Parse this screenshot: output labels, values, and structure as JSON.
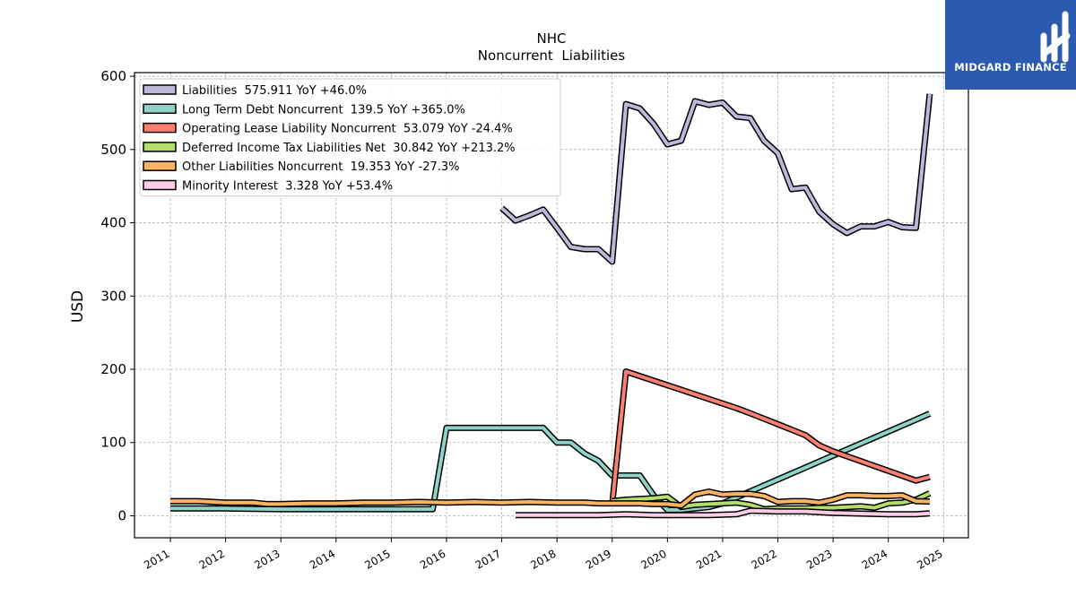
{
  "brand": {
    "name": "MIDGARD FINANCE",
    "logo_color": "#2b5ab0"
  },
  "chart_data": {
    "type": "line",
    "title": "NHC",
    "subtitle": "Noncurrent  Liabilities",
    "xlabel": "",
    "ylabel": "USD",
    "xlim": [
      2010.35,
      2025.45
    ],
    "ylim": [
      -30,
      605
    ],
    "x_ticks": [
      "2011",
      "2012",
      "2013",
      "2014",
      "2015",
      "2016",
      "2017",
      "2018",
      "2019",
      "2020",
      "2021",
      "2022",
      "2023",
      "2024",
      "2025"
    ],
    "y_ticks": [
      0,
      100,
      200,
      300,
      400,
      500,
      600
    ],
    "grid": true,
    "legend_position": "top-left",
    "series": [
      {
        "name": "Liabilities",
        "legend_label": "Liabilities  575.911 YoY +46.0%",
        "color": "#bcb8da",
        "points": [
          [
            2017.0,
            420
          ],
          [
            2017.25,
            403
          ],
          [
            2017.5,
            410
          ],
          [
            2017.75,
            418
          ],
          [
            2018.0,
            393
          ],
          [
            2018.25,
            367
          ],
          [
            2018.5,
            364
          ],
          [
            2018.75,
            364
          ],
          [
            2019.0,
            347
          ],
          [
            2019.25,
            562
          ],
          [
            2019.5,
            556
          ],
          [
            2019.75,
            535
          ],
          [
            2020.0,
            507
          ],
          [
            2020.25,
            512
          ],
          [
            2020.5,
            566
          ],
          [
            2020.75,
            561
          ],
          [
            2021.0,
            564
          ],
          [
            2021.25,
            545
          ],
          [
            2021.5,
            543
          ],
          [
            2021.75,
            512
          ],
          [
            2022.0,
            495
          ],
          [
            2022.25,
            446
          ],
          [
            2022.5,
            448
          ],
          [
            2022.75,
            415
          ],
          [
            2023.0,
            398
          ],
          [
            2023.25,
            386
          ],
          [
            2023.5,
            395
          ],
          [
            2023.75,
            395
          ],
          [
            2024.0,
            401
          ],
          [
            2024.25,
            394
          ],
          [
            2024.5,
            393
          ],
          [
            2024.75,
            576
          ]
        ]
      },
      {
        "name": "Long Term Debt Noncurrent",
        "legend_label": "Long Term Debt Noncurrent  139.5 YoY +365.0%",
        "color": "#8dd3c7",
        "points": [
          [
            2011.0,
            10
          ],
          [
            2011.5,
            10
          ],
          [
            2012.0,
            10
          ],
          [
            2013.0,
            9
          ],
          [
            2014.0,
            9
          ],
          [
            2015.0,
            9
          ],
          [
            2015.75,
            9
          ],
          [
            2016.0,
            120
          ],
          [
            2016.5,
            120
          ],
          [
            2017.0,
            120
          ],
          [
            2017.5,
            120
          ],
          [
            2017.75,
            120
          ],
          [
            2018.0,
            100
          ],
          [
            2018.25,
            100
          ],
          [
            2018.5,
            85
          ],
          [
            2018.75,
            75
          ],
          [
            2019.0,
            55
          ],
          [
            2019.25,
            55
          ],
          [
            2019.5,
            55
          ],
          [
            2019.75,
            28
          ],
          [
            2020.0,
            8
          ],
          [
            2020.25,
            8
          ],
          [
            2020.5,
            10
          ],
          [
            2020.75,
            12
          ],
          [
            2021.0,
            17
          ],
          [
            2021.25,
            25
          ],
          [
            2024.75,
            139.5
          ]
        ]
      },
      {
        "name": "Operating Lease Liability Noncurrent",
        "legend_label": "Operating Lease Liability Noncurrent  53.079 YoY -24.4%",
        "color": "#fb8072",
        "points": [
          [
            2019.0,
            15
          ],
          [
            2019.25,
            197
          ],
          [
            2021.25,
            147
          ],
          [
            2021.5,
            140
          ],
          [
            2022.0,
            125
          ],
          [
            2022.5,
            110
          ],
          [
            2022.75,
            96
          ],
          [
            2023.0,
            88
          ],
          [
            2024.5,
            48
          ],
          [
            2024.75,
            53.1
          ]
        ]
      },
      {
        "name": "Deferred Income Tax Liabilities Net",
        "legend_label": "Deferred Income Tax Liabilities Net  30.842 YoY +213.2%",
        "color": "#b3de69",
        "points": [
          [
            2019.0,
            20
          ],
          [
            2019.25,
            22
          ],
          [
            2019.5,
            23
          ],
          [
            2019.75,
            24
          ],
          [
            2020.0,
            26
          ],
          [
            2020.25,
            12
          ],
          [
            2020.5,
            15
          ],
          [
            2020.75,
            16
          ],
          [
            2021.0,
            17
          ],
          [
            2021.25,
            18
          ],
          [
            2021.5,
            15
          ],
          [
            2021.75,
            9
          ],
          [
            2022.0,
            10
          ],
          [
            2022.5,
            10
          ],
          [
            2022.75,
            11
          ],
          [
            2023.0,
            11
          ],
          [
            2023.25,
            12
          ],
          [
            2023.5,
            13
          ],
          [
            2023.75,
            11
          ],
          [
            2024.0,
            17
          ],
          [
            2024.25,
            18
          ],
          [
            2024.5,
            22
          ],
          [
            2024.75,
            30.8
          ]
        ]
      },
      {
        "name": "Other Liabilities Noncurrent",
        "legend_label": "Other Liabilities Noncurrent  19.353 YoY -27.3%",
        "color": "#fdb462",
        "points": [
          [
            2011.0,
            20
          ],
          [
            2011.5,
            20
          ],
          [
            2012.0,
            18
          ],
          [
            2012.5,
            18
          ],
          [
            2012.75,
            16
          ],
          [
            2013.0,
            16
          ],
          [
            2013.5,
            17
          ],
          [
            2014.0,
            17
          ],
          [
            2014.5,
            18
          ],
          [
            2015.0,
            18
          ],
          [
            2015.5,
            19
          ],
          [
            2016.0,
            18
          ],
          [
            2016.5,
            19
          ],
          [
            2017.0,
            18
          ],
          [
            2017.5,
            19
          ],
          [
            2018.0,
            18
          ],
          [
            2018.5,
            18
          ],
          [
            2018.75,
            17
          ],
          [
            2019.0,
            17
          ],
          [
            2019.5,
            17
          ],
          [
            2019.75,
            16
          ],
          [
            2020.0,
            16
          ],
          [
            2020.25,
            14
          ],
          [
            2020.5,
            29
          ],
          [
            2020.75,
            33
          ],
          [
            2021.0,
            29
          ],
          [
            2021.25,
            30
          ],
          [
            2021.5,
            30
          ],
          [
            2021.75,
            27
          ],
          [
            2022.0,
            19
          ],
          [
            2022.25,
            20
          ],
          [
            2022.5,
            20
          ],
          [
            2022.75,
            18
          ],
          [
            2023.0,
            22
          ],
          [
            2023.25,
            28
          ],
          [
            2023.5,
            28
          ],
          [
            2023.75,
            27
          ],
          [
            2024.0,
            27
          ],
          [
            2024.25,
            28
          ],
          [
            2024.5,
            20
          ],
          [
            2024.75,
            19.4
          ]
        ]
      },
      {
        "name": "Minority Interest",
        "legend_label": "Minority Interest  3.328 YoY +53.4%",
        "color": "#fccde5",
        "points": [
          [
            2017.25,
            1
          ],
          [
            2017.75,
            1
          ],
          [
            2018.25,
            1
          ],
          [
            2018.75,
            1
          ],
          [
            2019.25,
            2
          ],
          [
            2019.75,
            1
          ],
          [
            2020.25,
            1
          ],
          [
            2020.75,
            1
          ],
          [
            2021.25,
            2
          ],
          [
            2021.5,
            7
          ],
          [
            2022.0,
            6
          ],
          [
            2022.5,
            6
          ],
          [
            2023.0,
            4
          ],
          [
            2023.5,
            3
          ],
          [
            2024.0,
            2
          ],
          [
            2024.5,
            2
          ],
          [
            2024.75,
            3.3
          ]
        ]
      }
    ]
  }
}
